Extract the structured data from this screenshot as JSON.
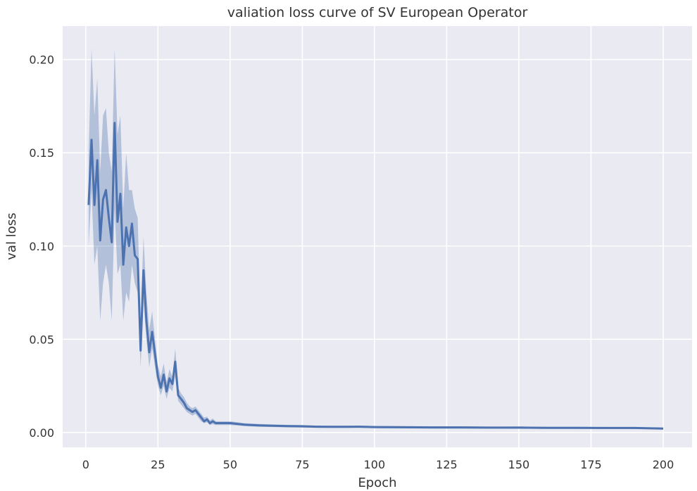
{
  "chart_data": {
    "type": "line",
    "title": "valiation loss curve of SV European Operator",
    "xlabel": "Epoch",
    "ylabel": "val loss",
    "xlim": [
      -8,
      210
    ],
    "ylim": [
      -0.008,
      0.218
    ],
    "xticks": [
      0,
      25,
      50,
      75,
      100,
      125,
      150,
      175,
      200
    ],
    "yticks": [
      0.0,
      0.05,
      0.1,
      0.15,
      0.2
    ],
    "ytick_labels": [
      "0.00",
      "0.05",
      "0.10",
      "0.15",
      "0.20"
    ],
    "grid": true,
    "colors": {
      "plot_bg": "#EAEAF2",
      "grid": "#FFFFFF",
      "line": "#4C72B0",
      "band": "#4C72B0"
    },
    "series": [
      {
        "x": [
          1,
          2,
          3,
          4,
          5,
          6,
          7,
          8,
          9,
          10,
          11,
          12,
          13,
          14,
          15,
          16,
          17,
          18,
          19,
          20,
          21,
          22,
          23,
          24,
          25,
          26,
          27,
          28,
          29,
          30,
          31,
          32,
          33,
          34,
          35,
          36,
          37,
          38,
          39,
          40,
          41,
          42,
          43,
          44,
          45,
          48,
          50,
          55,
          60,
          65,
          70,
          75,
          80,
          85,
          90,
          95,
          100,
          110,
          120,
          130,
          140,
          150,
          160,
          170,
          180,
          190,
          200
        ],
        "y": [
          0.122,
          0.157,
          0.122,
          0.146,
          0.103,
          0.125,
          0.13,
          0.115,
          0.102,
          0.166,
          0.113,
          0.128,
          0.09,
          0.11,
          0.1,
          0.112,
          0.095,
          0.093,
          0.044,
          0.087,
          0.06,
          0.043,
          0.054,
          0.042,
          0.03,
          0.024,
          0.031,
          0.022,
          0.029,
          0.026,
          0.038,
          0.02,
          0.018,
          0.016,
          0.013,
          0.012,
          0.011,
          0.012,
          0.01,
          0.008,
          0.006,
          0.007,
          0.005,
          0.006,
          0.005,
          0.005,
          0.005,
          0.0042,
          0.0038,
          0.0036,
          0.0034,
          0.0033,
          0.0031,
          0.003,
          0.003,
          0.0031,
          0.0029,
          0.0028,
          0.0027,
          0.0027,
          0.0026,
          0.0026,
          0.0025,
          0.0025,
          0.0024,
          0.0024,
          0.0021
        ],
        "lower": [
          0.1,
          0.13,
          0.09,
          0.1,
          0.06,
          0.08,
          0.09,
          0.08,
          0.06,
          0.12,
          0.085,
          0.09,
          0.06,
          0.075,
          0.07,
          0.09,
          0.08,
          0.075,
          0.035,
          0.07,
          0.05,
          0.035,
          0.045,
          0.035,
          0.025,
          0.02,
          0.025,
          0.018,
          0.024,
          0.022,
          0.03,
          0.017,
          0.015,
          0.013,
          0.011,
          0.01,
          0.009,
          0.01,
          0.008,
          0.006,
          0.005,
          0.0055,
          0.004,
          0.0045,
          0.004,
          0.004,
          0.004,
          0.0034,
          0.003,
          0.0029,
          0.0027,
          0.0026,
          0.0025,
          0.0024,
          0.0024,
          0.0025,
          0.0023,
          0.0022,
          0.0021,
          0.0021,
          0.0021,
          0.002,
          0.002,
          0.002,
          0.0019,
          0.0019,
          0.0016
        ],
        "upper": [
          0.15,
          0.206,
          0.17,
          0.19,
          0.14,
          0.17,
          0.174,
          0.15,
          0.14,
          0.206,
          0.16,
          0.17,
          0.12,
          0.15,
          0.13,
          0.13,
          0.12,
          0.115,
          0.06,
          0.105,
          0.075,
          0.055,
          0.065,
          0.05,
          0.036,
          0.03,
          0.037,
          0.027,
          0.034,
          0.03,
          0.045,
          0.024,
          0.021,
          0.019,
          0.016,
          0.014,
          0.013,
          0.014,
          0.012,
          0.01,
          0.008,
          0.0085,
          0.0065,
          0.0075,
          0.006,
          0.006,
          0.006,
          0.005,
          0.0046,
          0.0043,
          0.0041,
          0.004,
          0.0037,
          0.0036,
          0.0036,
          0.0037,
          0.0035,
          0.0034,
          0.0033,
          0.0033,
          0.0031,
          0.0032,
          0.003,
          0.003,
          0.0029,
          0.0029,
          0.0026
        ]
      }
    ]
  }
}
